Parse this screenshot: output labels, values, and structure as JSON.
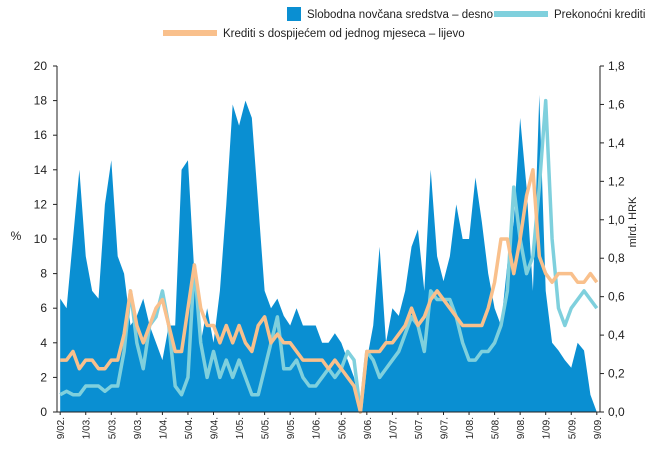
{
  "chart_data": {
    "type": "line",
    "legend": "top",
    "ylabel": "%",
    "y2label": "mlrd. HRK",
    "categories": [
      "9/02.",
      null,
      null,
      null,
      "1/03.",
      null,
      null,
      null,
      "5/03.",
      null,
      null,
      null,
      "9/03.",
      null,
      null,
      null,
      "1/04.",
      null,
      null,
      null,
      "5/04.",
      null,
      null,
      null,
      "9/04.",
      null,
      null,
      null,
      "1/05.",
      null,
      null,
      null,
      "5/05.",
      null,
      null,
      null,
      "9/05.",
      null,
      null,
      null,
      "1/06.",
      null,
      null,
      null,
      "5/06.",
      null,
      null,
      null,
      "9/06.",
      null,
      null,
      null,
      "1/07.",
      null,
      null,
      null,
      "5/07.",
      null,
      null,
      null,
      "9/07.",
      null,
      null,
      null,
      "1/08.",
      null,
      null,
      null,
      "5/08.",
      null,
      null,
      null,
      "9/08.",
      null,
      null,
      null,
      "1/09.",
      null,
      null,
      null,
      "5/09.",
      null,
      null,
      null,
      "9/09."
    ],
    "ylim": [
      0,
      20
    ],
    "yticks": [
      0,
      2,
      4,
      6,
      8,
      10,
      12,
      14,
      16,
      18,
      20
    ],
    "y2lim": [
      0,
      1.8
    ],
    "y2ticks": [
      {
        "value": 0,
        "label": "0,0"
      },
      {
        "value": 0.2,
        "label": "0,2"
      },
      {
        "value": 0.4,
        "label": "0,4"
      },
      {
        "value": 0.6,
        "label": "0,6"
      },
      {
        "value": 0.8,
        "label": "0,8"
      },
      {
        "value": 1.0,
        "label": "1,0"
      },
      {
        "value": 1.2,
        "label": "1,2"
      },
      {
        "value": 1.4,
        "label": "1,4"
      },
      {
        "value": 1.6,
        "label": "1,6"
      },
      {
        "value": 1.8,
        "label": "1,8"
      }
    ],
    "series": [
      {
        "name": "Slobodna novčana sredstva – desno",
        "type": "area",
        "axis": "y2",
        "color": "#0a8fd2",
        "values": [
          0.59,
          0.54,
          0.9,
          1.26,
          0.81,
          0.63,
          0.59,
          1.08,
          1.31,
          0.81,
          0.72,
          0.45,
          0.5,
          0.59,
          0.45,
          0.36,
          0.27,
          0.45,
          0.45,
          1.26,
          1.31,
          0.72,
          0.36,
          0.54,
          0.36,
          0.63,
          1.08,
          1.6,
          1.49,
          1.62,
          1.53,
          1.08,
          0.63,
          0.54,
          0.59,
          0.5,
          0.45,
          0.54,
          0.45,
          0.45,
          0.45,
          0.36,
          0.36,
          0.41,
          0.36,
          0.27,
          0.18,
          0,
          0.27,
          0.45,
          0.86,
          0.36,
          0.54,
          0.5,
          0.63,
          0.86,
          0.95,
          0.63,
          1.26,
          0.81,
          0.68,
          0.81,
          1.08,
          0.9,
          0.9,
          1.22,
          0.99,
          0.72,
          0.54,
          0.45,
          0.77,
          0.99,
          1.53,
          1.17,
          0.63,
          1.65,
          0.63,
          0.36,
          0.32,
          0.27,
          0.23,
          0.36,
          0.32,
          0.09,
          0
        ]
      },
      {
        "name": "Prekonoćni krediti – lijevo",
        "type": "line",
        "color": "#7fd0dd",
        "values": [
          1,
          1.2,
          1,
          1,
          1.5,
          1.5,
          1.5,
          1.2,
          1.5,
          1.5,
          3.5,
          7,
          4,
          2.5,
          5,
          5.5,
          7,
          5,
          1.5,
          1,
          2,
          8.5,
          4,
          2,
          3.5,
          2,
          3,
          2,
          3,
          2,
          1,
          1,
          2.5,
          4,
          5.5,
          2.5,
          2.5,
          3,
          2,
          1.5,
          1.5,
          2,
          2.5,
          2,
          2.5,
          3.5,
          3,
          0,
          3.5,
          3,
          2,
          2.5,
          3,
          3.5,
          4.5,
          5.5,
          5,
          3.5,
          7,
          6.5,
          6.5,
          6.5,
          5.5,
          4,
          3,
          3,
          3.5,
          3.5,
          4,
          5,
          7,
          13,
          10,
          8,
          9,
          13,
          18,
          10,
          6,
          5,
          6,
          6.5,
          7,
          6.5,
          6
        ]
      },
      {
        "name": "Krediti s dospijećem od jednog mjeseca – lijevo",
        "type": "line",
        "color": "#f9c08c",
        "values": [
          3,
          3,
          3.5,
          2.5,
          3,
          3,
          2.5,
          2.5,
          3,
          3,
          4.5,
          7,
          5,
          4,
          5,
          6,
          6.5,
          5,
          3.5,
          3.5,
          6,
          8.5,
          6,
          5,
          5,
          4,
          5,
          4,
          5,
          4,
          3.5,
          5,
          5.5,
          4,
          4.5,
          4,
          4,
          3.5,
          3,
          3,
          3,
          3,
          2.5,
          3,
          2.5,
          2,
          1.5,
          0,
          3.5,
          3.5,
          3.5,
          4,
          4,
          4.5,
          5,
          6,
          5,
          5.5,
          6.5,
          7,
          6.5,
          6,
          5.5,
          5,
          5,
          5,
          5,
          6,
          7.5,
          10,
          10,
          8,
          10,
          12.5,
          14,
          9,
          8,
          7.5,
          8,
          8,
          8,
          7.5,
          7.5,
          8,
          7.5
        ]
      }
    ]
  }
}
